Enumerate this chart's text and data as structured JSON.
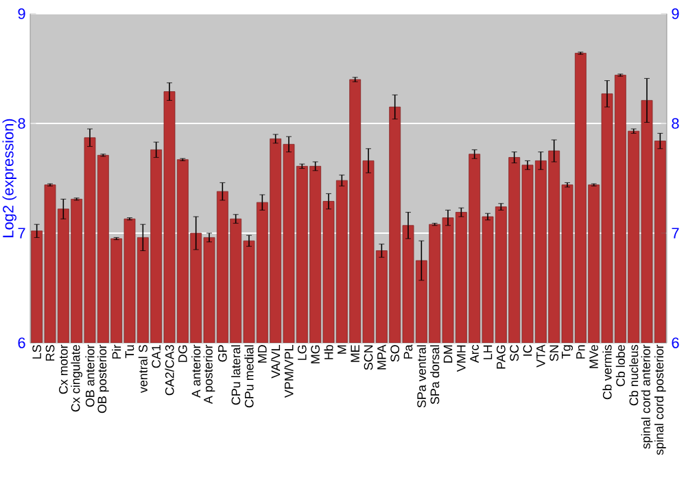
{
  "chart_data": {
    "type": "bar",
    "ylabel": "Log2 (expression)",
    "categories": [
      "LS",
      "RS",
      "Cx motor",
      "Cx cingulate",
      "OB anterior",
      "OB posterior",
      "Pir",
      "Tu",
      "ventral S",
      "CA1",
      "CA2/CA3",
      "DG",
      "A anterior",
      "A posterior",
      "GP",
      "CPu lateral",
      "CPu medial",
      "MD",
      "VA/VL",
      "VPM/VPL",
      "LG",
      "MG",
      "Hb",
      "M",
      "ME",
      "SCN",
      "MPA",
      "SO",
      "Pa",
      "SPa ventral",
      "SPa dorsal",
      "DM",
      "VMH",
      "Arc",
      "LH",
      "PAG",
      "SC",
      "IC",
      "VTA",
      "SN",
      "Tg",
      "Pn",
      "MVe",
      "Cb vermis",
      "Cb lobe",
      "Cb nucleus",
      "spinal cord anterior",
      "spinal cord posterior"
    ],
    "values": [
      7.02,
      7.44,
      7.22,
      7.31,
      7.87,
      7.71,
      6.95,
      7.13,
      6.96,
      7.76,
      8.29,
      7.67,
      7.0,
      6.96,
      7.38,
      7.13,
      6.93,
      7.28,
      7.86,
      7.81,
      7.61,
      7.61,
      7.29,
      7.48,
      8.4,
      7.66,
      6.84,
      8.15,
      7.07,
      6.75,
      7.08,
      7.14,
      7.19,
      7.72,
      7.15,
      7.24,
      7.69,
      7.62,
      7.66,
      7.75,
      7.44,
      8.64,
      7.44,
      8.27,
      8.44,
      7.93,
      8.21,
      7.84
    ],
    "errors": [
      0.06,
      0.01,
      0.09,
      0.01,
      0.08,
      0.01,
      0.01,
      0.01,
      0.12,
      0.07,
      0.08,
      0.01,
      0.15,
      0.04,
      0.08,
      0.04,
      0.05,
      0.07,
      0.04,
      0.07,
      0.02,
      0.04,
      0.07,
      0.05,
      0.02,
      0.11,
      0.06,
      0.11,
      0.12,
      0.18,
      0.01,
      0.07,
      0.04,
      0.04,
      0.03,
      0.03,
      0.05,
      0.04,
      0.08,
      0.1,
      0.02,
      0.01,
      0.01,
      0.12,
      0.01,
      0.02,
      0.2,
      0.07
    ],
    "color": "#b83232",
    "ylim": [
      6,
      9
    ],
    "yticks": [
      6,
      7,
      8,
      9
    ],
    "y2lim": [
      6,
      9
    ],
    "y2ticks": [
      6,
      7,
      8,
      9
    ],
    "grid": "y"
  }
}
